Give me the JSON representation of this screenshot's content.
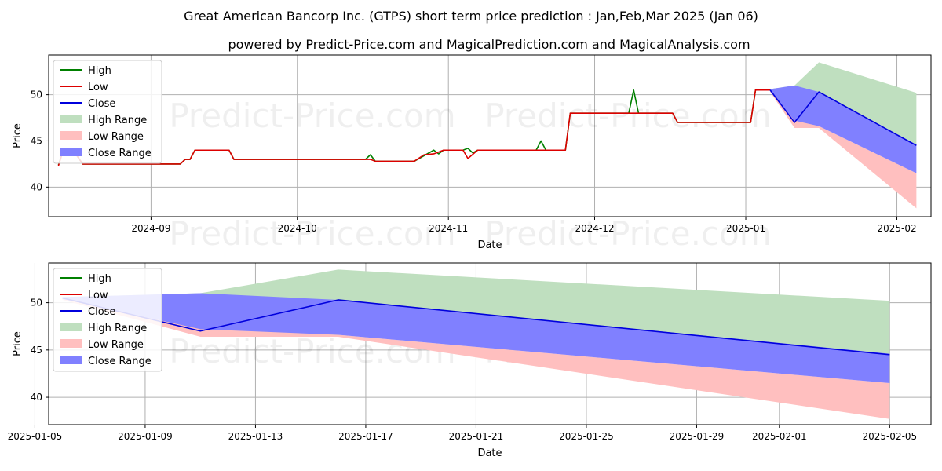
{
  "title": "Great American Bancorp Inc. (GTPS) short term price prediction : Jan,Feb,Mar 2025 (Jan 06)",
  "subtitle": "powered by Predict-Price.com and MagicalPrediction.com and MagicalAnalysis.com",
  "watermark": "Predict-Price.com",
  "colors": {
    "high": "#008000",
    "low": "#dd0000",
    "close": "#0000dd",
    "high_range": "#bfdfbf",
    "low_range": "#ffbfbf",
    "close_range": "#8080ff"
  },
  "legend": [
    "High",
    "Low",
    "Close",
    "High Range",
    "Low Range",
    "Close Range"
  ],
  "chart_data": [
    {
      "type": "line",
      "xlabel": "Date",
      "ylabel": "Price",
      "xlim": [
        "2024-08-11",
        "2025-02-08"
      ],
      "ylim": [
        36.8,
        54.3
      ],
      "xticks": [
        "2024-09",
        "2024-10",
        "2024-11",
        "2024-12",
        "2025-01",
        "2025-02"
      ],
      "xtick_dates": [
        "2024-09-01",
        "2024-10-01",
        "2024-11-01",
        "2024-12-01",
        "2025-01-01",
        "2025-02-01"
      ],
      "yticks": [
        40,
        45,
        50
      ],
      "series": [
        {
          "name": "High",
          "points": [
            [
              "2024-08-13",
              42.4
            ],
            [
              "2024-08-14",
              44
            ],
            [
              "2024-08-16",
              44
            ],
            [
              "2024-08-18",
              42.5
            ],
            [
              "2024-09-07",
              42.5
            ],
            [
              "2024-09-08",
              43
            ],
            [
              "2024-09-09",
              43
            ],
            [
              "2024-09-10",
              44
            ],
            [
              "2024-09-17",
              44
            ],
            [
              "2024-09-18",
              43
            ],
            [
              "2024-10-15",
              43
            ],
            [
              "2024-10-16",
              43.5
            ],
            [
              "2024-10-17",
              42.8
            ],
            [
              "2024-10-25",
              42.8
            ],
            [
              "2024-10-29",
              44
            ],
            [
              "2024-10-30",
              43.6
            ],
            [
              "2024-10-31",
              44
            ],
            [
              "2024-11-04",
              44
            ],
            [
              "2024-11-05",
              44.2
            ],
            [
              "2024-11-06",
              43.7
            ],
            [
              "2024-11-07",
              44
            ],
            [
              "2024-11-19",
              44
            ],
            [
              "2024-11-20",
              45
            ],
            [
              "2024-11-21",
              44
            ],
            [
              "2024-11-25",
              44
            ],
            [
              "2024-11-26",
              48
            ],
            [
              "2024-12-08",
              48
            ],
            [
              "2024-12-09",
              50.5
            ],
            [
              "2024-12-10",
              48
            ],
            [
              "2024-12-17",
              48
            ],
            [
              "2024-12-18",
              47
            ],
            [
              "2025-01-02",
              47
            ],
            [
              "2025-01-03",
              50.5
            ],
            [
              "2025-01-06",
              50.5
            ]
          ]
        },
        {
          "name": "Low",
          "points": [
            [
              "2024-08-13",
              42.3
            ],
            [
              "2024-08-14",
              44
            ],
            [
              "2024-08-16",
              44
            ],
            [
              "2024-08-18",
              42.5
            ],
            [
              "2024-09-07",
              42.5
            ],
            [
              "2024-09-08",
              43
            ],
            [
              "2024-09-09",
              43
            ],
            [
              "2024-09-10",
              44
            ],
            [
              "2024-09-17",
              44
            ],
            [
              "2024-09-18",
              43
            ],
            [
              "2024-10-16",
              43
            ],
            [
              "2024-10-17",
              42.8
            ],
            [
              "2024-10-25",
              42.8
            ],
            [
              "2024-10-27",
              43.5
            ],
            [
              "2024-10-29",
              43.6
            ],
            [
              "2024-10-31",
              44
            ],
            [
              "2024-11-04",
              44
            ],
            [
              "2024-11-05",
              43.1
            ],
            [
              "2024-11-07",
              44
            ],
            [
              "2024-11-25",
              44
            ],
            [
              "2024-11-26",
              48
            ],
            [
              "2024-12-17",
              48
            ],
            [
              "2024-12-18",
              47
            ],
            [
              "2025-01-02",
              47
            ],
            [
              "2025-01-03",
              50.5
            ],
            [
              "2025-01-06",
              50.5
            ]
          ]
        },
        {
          "name": "Close",
          "points": [
            [
              "2025-01-06",
              50.5
            ],
            [
              "2025-01-11",
              47
            ],
            [
              "2025-01-16",
              50.3
            ],
            [
              "2025-02-05",
              44.5
            ]
          ]
        }
      ],
      "ranges": [
        {
          "name": "High Range",
          "upper": [
            [
              "2025-01-06",
              50.6
            ],
            [
              "2025-01-11",
              51
            ],
            [
              "2025-01-16",
              53.5
            ],
            [
              "2025-02-05",
              50.2
            ]
          ],
          "lower": [
            [
              "2025-01-06",
              50.4
            ],
            [
              "2025-01-11",
              47.2
            ],
            [
              "2025-01-16",
              46.6
            ],
            [
              "2025-02-05",
              44.6
            ]
          ]
        },
        {
          "name": "Low Range",
          "upper": [
            [
              "2025-01-06",
              50.4
            ],
            [
              "2025-01-11",
              47.3
            ],
            [
              "2025-01-16",
              46.6
            ],
            [
              "2025-02-05",
              41.5
            ]
          ],
          "lower": [
            [
              "2025-01-06",
              50.3
            ],
            [
              "2025-01-11",
              46.4
            ],
            [
              "2025-01-16",
              46.4
            ],
            [
              "2025-02-05",
              37.7
            ]
          ]
        },
        {
          "name": "Close Range",
          "upper": [
            [
              "2025-01-06",
              50.6
            ],
            [
              "2025-01-11",
              51
            ],
            [
              "2025-01-16",
              50.3
            ],
            [
              "2025-02-05",
              44.6
            ]
          ],
          "lower": [
            [
              "2025-01-06",
              50.4
            ],
            [
              "2025-01-11",
              47.2
            ],
            [
              "2025-01-16",
              46.6
            ],
            [
              "2025-02-05",
              41.5
            ]
          ]
        }
      ]
    },
    {
      "type": "line",
      "xlabel": "Date",
      "ylabel": "Price",
      "xlim": [
        "2025-01-05 12:00",
        "2025-02-06 12:00"
      ],
      "ylim": [
        37.1,
        54.2
      ],
      "xticks": [
        "2025-01-05",
        "2025-01-09",
        "2025-01-13",
        "2025-01-17",
        "2025-01-21",
        "2025-01-25",
        "2025-01-29",
        "2025-02-01",
        "2025-02-05"
      ],
      "yticks": [
        40,
        45,
        50
      ],
      "series": [
        {
          "name": "Close",
          "points": [
            [
              "2025-01-06",
              50.5
            ],
            [
              "2025-01-11",
              47
            ],
            [
              "2025-01-16",
              50.3
            ],
            [
              "2025-02-05",
              44.5
            ]
          ]
        }
      ],
      "ranges": [
        {
          "name": "High Range",
          "upper": [
            [
              "2025-01-06",
              50.6
            ],
            [
              "2025-01-11",
              51
            ],
            [
              "2025-01-16",
              53.5
            ],
            [
              "2025-02-05",
              50.2
            ]
          ],
          "lower": [
            [
              "2025-01-06",
              50.4
            ],
            [
              "2025-01-11",
              47.2
            ],
            [
              "2025-01-16",
              46.6
            ],
            [
              "2025-02-05",
              44.6
            ]
          ]
        },
        {
          "name": "Low Range",
          "upper": [
            [
              "2025-01-06",
              50.4
            ],
            [
              "2025-01-11",
              47.3
            ],
            [
              "2025-01-16",
              46.6
            ],
            [
              "2025-02-05",
              41.5
            ]
          ],
          "lower": [
            [
              "2025-01-06",
              50.3
            ],
            [
              "2025-01-11",
              46.4
            ],
            [
              "2025-01-16",
              46.4
            ],
            [
              "2025-02-05",
              37.7
            ]
          ]
        },
        {
          "name": "Close Range",
          "upper": [
            [
              "2025-01-06",
              50.6
            ],
            [
              "2025-01-11",
              51
            ],
            [
              "2025-01-16",
              50.3
            ],
            [
              "2025-02-05",
              44.6
            ]
          ],
          "lower": [
            [
              "2025-01-06",
              50.4
            ],
            [
              "2025-01-11",
              47.2
            ],
            [
              "2025-01-16",
              46.6
            ],
            [
              "2025-02-05",
              41.5
            ]
          ]
        }
      ]
    }
  ]
}
